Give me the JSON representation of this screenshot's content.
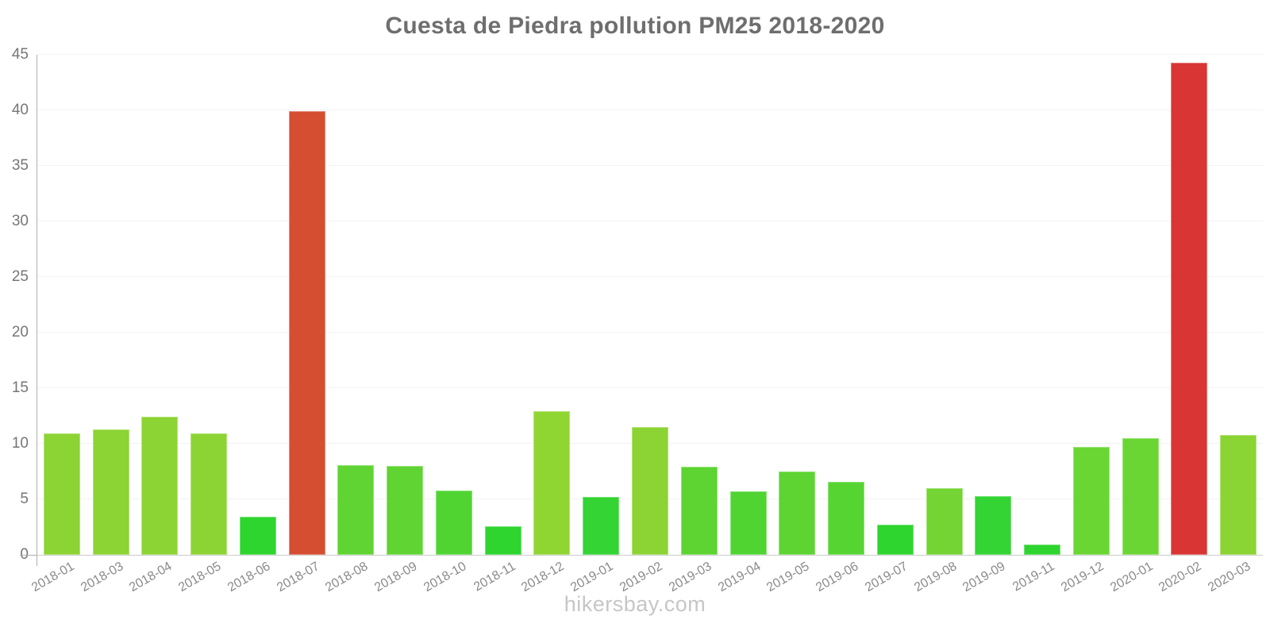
{
  "page": {
    "footer": "hikersbay.com"
  },
  "chart_data": {
    "type": "bar",
    "title": "Cuesta de Piedra pollution PM25 2018-2020",
    "xlabel": "",
    "ylabel": "",
    "ylim": [
      0,
      45
    ],
    "y_ticks": [
      0,
      5,
      10,
      15,
      20,
      25,
      30,
      35,
      40,
      45
    ],
    "grid": true,
    "legend_position": "none",
    "categories": [
      "2018-01",
      "2018-03",
      "2018-04",
      "2018-05",
      "2018-06",
      "2018-07",
      "2018-08",
      "2018-09",
      "2018-10",
      "2018-11",
      "2018-12",
      "2019-01",
      "2019-02",
      "2019-03",
      "2019-04",
      "2019-05",
      "2019-06",
      "2019-07",
      "2019-08",
      "2019-09",
      "2019-11",
      "2019-12",
      "2020-01",
      "2020-02",
      "2020-03"
    ],
    "values": [
      10.9,
      11.3,
      12.4,
      10.9,
      3.4,
      39.9,
      8.1,
      8.0,
      5.8,
      2.6,
      12.9,
      5.2,
      11.5,
      7.9,
      5.7,
      7.5,
      6.6,
      2.7,
      6.0,
      5.3,
      0.9,
      9.7,
      10.5,
      44.3,
      10.8
    ],
    "bar_colors": [
      "#8CD433",
      "#8CD433",
      "#8CD433",
      "#8CD433",
      "#2ED52E",
      "#D54E31",
      "#60D432",
      "#60D432",
      "#4FD432",
      "#2ED52E",
      "#90D633",
      "#33D433",
      "#8CD433",
      "#5DD432",
      "#4FD432",
      "#5DD432",
      "#55D432",
      "#2ED52E",
      "#74D433",
      "#33D433",
      "#2ED52E",
      "#6AD633",
      "#6AD633",
      "#D93535",
      "#8AD433"
    ],
    "colors_meaning": {
      "green_low": "#2ED52E",
      "yellow_green_mid": "#8CD433",
      "red_high": "#D93535"
    }
  }
}
